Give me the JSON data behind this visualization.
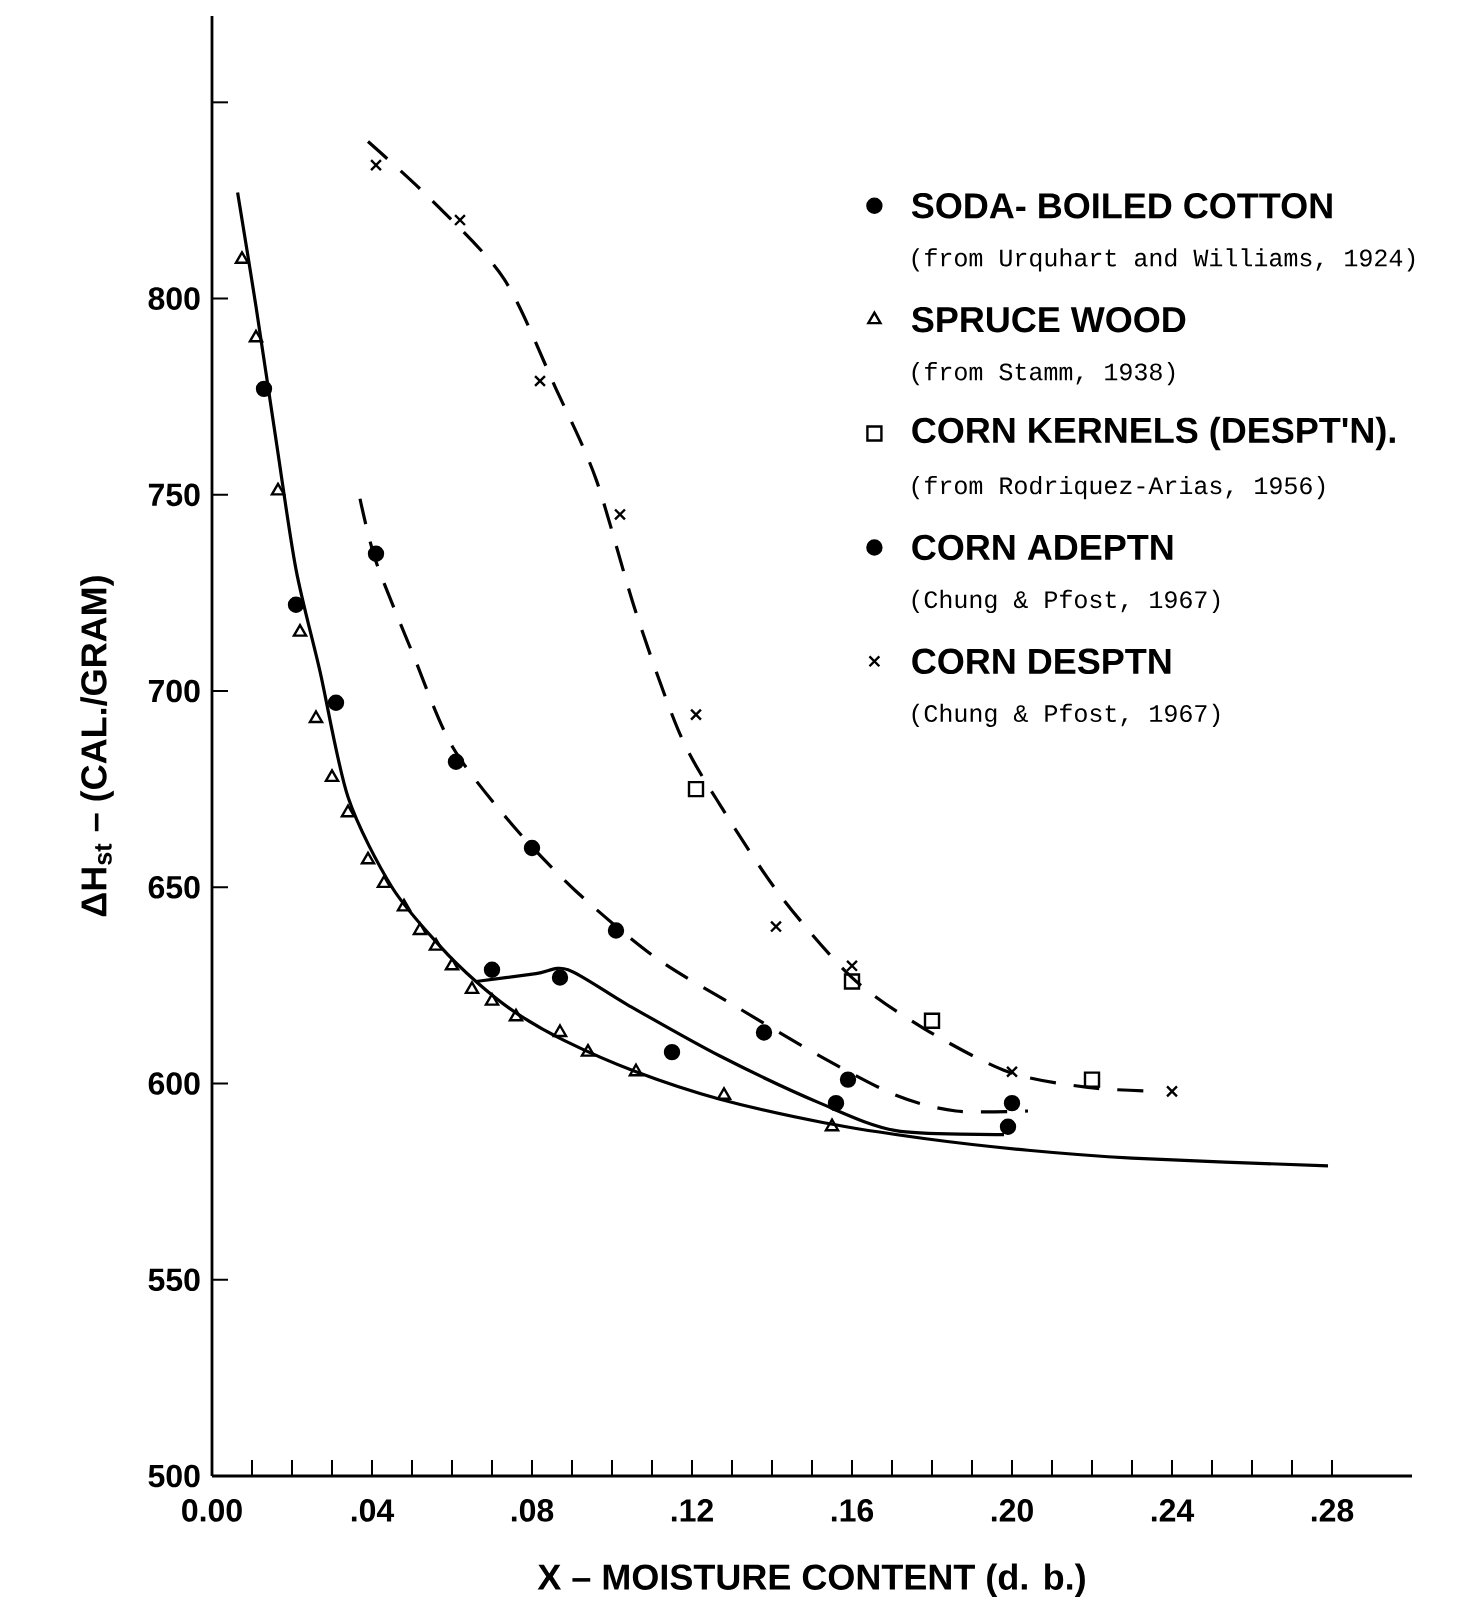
{
  "chart_data": {
    "type": "scatter",
    "xlabel": "X – MOISTURE CONTENT (d. b.)",
    "ylabel": "ΔH$_{st}$ – (CAL./GRAM)",
    "xlim": [
      0,
      0.3
    ],
    "ylim": [
      500,
      872
    ],
    "xticks": [
      {
        "value": 0,
        "label": "0.00"
      },
      {
        "value": 0.04,
        "label": ".04"
      },
      {
        "value": 0.08,
        "label": ".08"
      },
      {
        "value": 0.12,
        "label": ".12"
      },
      {
        "value": 0.16,
        "label": ".16"
      },
      {
        "value": 0.2,
        "label": ".20"
      },
      {
        "value": 0.24,
        "label": ".24"
      },
      {
        "value": 0.28,
        "label": ".28"
      }
    ],
    "yticks": [
      500,
      550,
      600,
      650,
      700,
      750,
      800
    ],
    "legend": "top right",
    "annotations": [
      "(from Urquhart and Williams, 1924)",
      "(from Stamm, 1938)",
      "(from Rodriquez-Arias, 1956)",
      "(Chung & Pfost, 1967)",
      "(Chung & Pfost, 1967)"
    ],
    "series": [
      {
        "name": "SODA- BOILED COTTON",
        "type": "scatter",
        "marker": "circle",
        "color": "#000000",
        "x": [
          0.013,
          0.021,
          0.031,
          0.07,
          0.087,
          0.115,
          0.156,
          0.199
        ],
        "values": [
          777,
          722,
          697,
          629,
          627,
          608,
          595,
          589
        ]
      },
      {
        "name": "SPRUCE WOOD",
        "type": "scatter",
        "marker": "triangle",
        "color": "#000000",
        "x": [
          0.0075,
          0.011,
          0.0165,
          0.022,
          0.026,
          0.03,
          0.034,
          0.039,
          0.043,
          0.048,
          0.052,
          0.056,
          0.06,
          0.065,
          0.07,
          0.076,
          0.087,
          0.094,
          0.106,
          0.128,
          0.155
        ],
        "values": [
          810,
          790,
          751,
          715,
          693,
          678,
          669,
          657,
          651,
          645,
          639,
          635,
          630,
          624,
          621,
          617,
          613,
          608,
          603,
          597,
          589
        ]
      },
      {
        "name": "CORN KERNELS (DESPT'N).",
        "type": "scatter",
        "marker": "square",
        "color": "#000000",
        "x": [
          0.121,
          0.16,
          0.18,
          0.22
        ],
        "values": [
          675,
          626,
          616,
          601
        ]
      },
      {
        "name": "CORN ADEPTN",
        "type": "scatter",
        "marker": "circle",
        "color": "#000000",
        "x": [
          0.041,
          0.061,
          0.08,
          0.101,
          0.138,
          0.159,
          0.2
        ],
        "values": [
          735,
          682,
          660,
          639,
          613,
          601,
          595
        ]
      },
      {
        "name": "CORN DESPTN",
        "type": "scatter",
        "marker": "cross",
        "color": "#000000",
        "x": [
          0.041,
          0.062,
          0.082,
          0.102,
          0.121,
          0.141,
          0.16,
          0.2,
          0.24
        ],
        "values": [
          834,
          820,
          779,
          745,
          694,
          640,
          630,
          603,
          598
        ]
      },
      {
        "type": "line",
        "line_style": "solid",
        "marker": "none",
        "color": "#000000",
        "x": [
          0.0064,
          0.011,
          0.016,
          0.021,
          0.027,
          0.034,
          0.045,
          0.057,
          0.066,
          0.076,
          0.088,
          0.106,
          0.127,
          0.153,
          0.178,
          0.204,
          0.23,
          0.279
        ],
        "values": [
          827,
          798,
          764,
          731,
          705,
          673,
          650,
          635,
          626,
          618,
          611,
          603,
          596,
          590,
          586,
          583,
          581,
          579
        ]
      },
      {
        "type": "line",
        "line_style": "solid",
        "marker": "none",
        "color": "#000000",
        "x": [
          0.066,
          0.081,
          0.089,
          0.104,
          0.127,
          0.152,
          0.171,
          0.198
        ],
        "values": [
          626,
          628,
          629,
          620,
          607,
          595,
          588,
          587
        ]
      },
      {
        "type": "line",
        "line_style": "dashed",
        "marker": "none",
        "color": "#000000",
        "x": [
          0.037,
          0.041,
          0.05,
          0.06,
          0.075,
          0.091,
          0.111,
          0.132,
          0.152,
          0.171,
          0.186,
          0.204
        ],
        "values": [
          749,
          733,
          710,
          686,
          666,
          649,
          632,
          619,
          607,
          597,
          593,
          593
        ]
      },
      {
        "type": "line",
        "line_style": "dashed",
        "marker": "none",
        "color": "#000000",
        "x": [
          0.039,
          0.055,
          0.073,
          0.086,
          0.096,
          0.106,
          0.117,
          0.127,
          0.142,
          0.16,
          0.178,
          0.199,
          0.219,
          0.237
        ],
        "values": [
          840,
          825,
          805,
          777,
          754,
          720,
          689,
          671,
          648,
          627,
          614,
          603,
          599,
          598
        ]
      }
    ]
  }
}
